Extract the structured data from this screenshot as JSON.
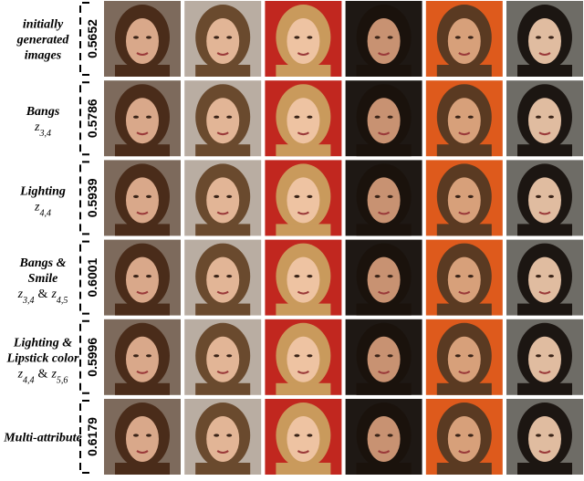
{
  "rows": [
    {
      "label": [
        "initially",
        "generated",
        "images"
      ],
      "score": 0.5652
    },
    {
      "label": [
        "Bangs"
      ],
      "math": {
        "terms": [
          {
            "var": "z",
            "sub": "3,4"
          }
        ]
      },
      "score": 0.5786
    },
    {
      "label": [
        "Lighting"
      ],
      "math": {
        "terms": [
          {
            "var": "z",
            "sub": "4,4"
          }
        ]
      },
      "score": 0.5939
    },
    {
      "label": [
        "Bangs &",
        "Smile"
      ],
      "math": {
        "terms": [
          {
            "var": "z",
            "sub": "3,4"
          },
          {
            "var": "z",
            "sub": "4,5"
          }
        ],
        "joiner": "&"
      },
      "score": 0.6001
    },
    {
      "label": [
        "Lighting &",
        "Lipstick color"
      ],
      "math": {
        "terms": [
          {
            "var": "z",
            "sub": "4,4"
          },
          {
            "var": "z",
            "sub": "5,6"
          }
        ],
        "joiner": "&"
      },
      "score": 0.5996
    },
    {
      "label": [
        "Multi-attribute"
      ],
      "score": 0.6179
    }
  ]
}
